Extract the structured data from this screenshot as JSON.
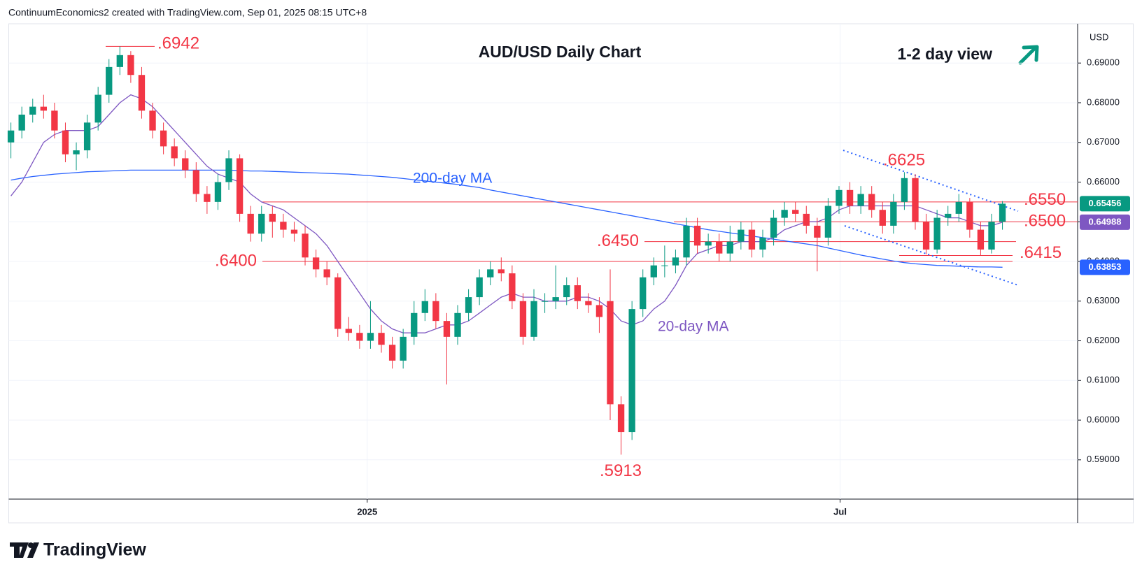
{
  "header": "ContinuumEconomics2 created with TradingView.com, Sep 01, 2025 08:15 UTC+8",
  "footer": "TradingView",
  "chart_data": {
    "type": "candlestick",
    "title": "AUD/USD Daily Chart",
    "subtitle": "1-2 day view",
    "currency": "USD",
    "up_color": "#089981",
    "down_color": "#f23645",
    "open": [
      0.67,
      0.673,
      0.677,
      0.679,
      0.678,
      0.673,
      0.667,
      0.668,
      0.675,
      0.682,
      0.689,
      0.692,
      0.687,
      0.678,
      0.673,
      0.669,
      0.666,
      0.663,
      0.657,
      0.655,
      0.66,
      0.666,
      0.652,
      0.647,
      0.652,
      0.65,
      0.648,
      0.647,
      0.641,
      0.638,
      0.636,
      0.623,
      0.622,
      0.62,
      0.622,
      0.619,
      0.615,
      0.621,
      0.627,
      0.63,
      0.625,
      0.621,
      0.627,
      0.631,
      0.636,
      0.638,
      0.637,
      0.63,
      0.621,
      0.63,
      0.63,
      0.631,
      0.634,
      0.63,
      0.629,
      0.63,
      0.604,
      0.597,
      0.628,
      0.636,
      0.639,
      0.639,
      0.641,
      0.649,
      0.644,
      0.645,
      0.642,
      0.645,
      0.648,
      0.643,
      0.646,
      0.651,
      0.653,
      0.652,
      0.649,
      0.646,
      0.654,
      0.658,
      0.654,
      0.657,
      0.653,
      0.649,
      0.655,
      0.661,
      0.65,
      0.643,
      0.651,
      0.652,
      0.655,
      0.648,
      0.643,
      0.65
    ],
    "high": [
      0.675,
      0.679,
      0.681,
      0.682,
      0.68,
      0.675,
      0.67,
      0.677,
      0.684,
      0.691,
      0.6942,
      0.693,
      0.689,
      0.68,
      0.675,
      0.671,
      0.668,
      0.665,
      0.659,
      0.662,
      0.668,
      0.667,
      0.654,
      0.654,
      0.654,
      0.652,
      0.65,
      0.649,
      0.643,
      0.64,
      0.637,
      0.626,
      0.624,
      0.63,
      0.624,
      0.621,
      0.623,
      0.63,
      0.633,
      0.632,
      0.627,
      0.629,
      0.633,
      0.638,
      0.64,
      0.641,
      0.639,
      0.632,
      0.633,
      0.632,
      0.639,
      0.636,
      0.636,
      0.632,
      0.631,
      0.638,
      0.606,
      0.63,
      0.638,
      0.641,
      0.644,
      0.643,
      0.651,
      0.651,
      0.647,
      0.647,
      0.649,
      0.65,
      0.65,
      0.648,
      0.653,
      0.655,
      0.655,
      0.654,
      0.651,
      0.656,
      0.659,
      0.66,
      0.659,
      0.659,
      0.655,
      0.657,
      0.6625,
      0.662,
      0.652,
      0.653,
      0.654,
      0.657,
      0.656,
      0.65,
      0.652,
      0.6552
    ],
    "low": [
      0.666,
      0.671,
      0.675,
      0.676,
      0.671,
      0.665,
      0.663,
      0.666,
      0.673,
      0.68,
      0.687,
      0.685,
      0.676,
      0.671,
      0.667,
      0.664,
      0.661,
      0.655,
      0.652,
      0.653,
      0.658,
      0.65,
      0.645,
      0.645,
      0.646,
      0.646,
      0.645,
      0.639,
      0.636,
      0.634,
      0.621,
      0.62,
      0.618,
      0.618,
      0.617,
      0.613,
      0.613,
      0.619,
      0.625,
      0.623,
      0.609,
      0.619,
      0.625,
      0.629,
      0.634,
      0.635,
      0.628,
      0.619,
      0.62,
      0.627,
      0.628,
      0.629,
      0.628,
      0.627,
      0.622,
      0.6,
      0.5913,
      0.595,
      0.626,
      0.634,
      0.636,
      0.637,
      0.639,
      0.642,
      0.642,
      0.64,
      0.64,
      0.643,
      0.641,
      0.641,
      0.644,
      0.649,
      0.65,
      0.647,
      0.6375,
      0.644,
      0.652,
      0.652,
      0.652,
      0.651,
      0.647,
      0.647,
      0.653,
      0.648,
      0.6418,
      0.642,
      0.649,
      0.65,
      0.646,
      0.6415,
      0.642,
      0.648
    ],
    "close": [
      0.673,
      0.677,
      0.679,
      0.678,
      0.673,
      0.667,
      0.668,
      0.675,
      0.682,
      0.689,
      0.692,
      0.687,
      0.678,
      0.673,
      0.669,
      0.666,
      0.663,
      0.657,
      0.655,
      0.66,
      0.666,
      0.652,
      0.647,
      0.652,
      0.65,
      0.648,
      0.647,
      0.641,
      0.638,
      0.636,
      0.623,
      0.622,
      0.62,
      0.622,
      0.619,
      0.615,
      0.621,
      0.627,
      0.63,
      0.625,
      0.621,
      0.627,
      0.631,
      0.636,
      0.638,
      0.637,
      0.63,
      0.621,
      0.63,
      0.63,
      0.631,
      0.634,
      0.63,
      0.629,
      0.626,
      0.604,
      0.597,
      0.628,
      0.636,
      0.639,
      0.639,
      0.641,
      0.649,
      0.644,
      0.645,
      0.642,
      0.645,
      0.648,
      0.643,
      0.646,
      0.651,
      0.653,
      0.652,
      0.649,
      0.646,
      0.654,
      0.658,
      0.654,
      0.657,
      0.653,
      0.649,
      0.655,
      0.661,
      0.65,
      0.643,
      0.651,
      0.652,
      0.655,
      0.648,
      0.643,
      0.65,
      0.65456
    ],
    "series": [
      {
        "name": "200-day MA",
        "color": "#2962ff",
        "values": [
          0.6605,
          0.661,
          0.6614,
          0.6617,
          0.662,
          0.6622,
          0.6624,
          0.6626,
          0.6627,
          0.6628,
          0.6629,
          0.663,
          0.663,
          0.663,
          0.663,
          0.663,
          0.663,
          0.663,
          0.663,
          0.663,
          0.663,
          0.6629,
          0.6628,
          0.6628,
          0.6627,
          0.6626,
          0.6625,
          0.6624,
          0.6623,
          0.6622,
          0.6621,
          0.662,
          0.6618,
          0.6616,
          0.6614,
          0.6612,
          0.6609,
          0.6606,
          0.6603,
          0.66,
          0.6597,
          0.6594,
          0.659,
          0.6586,
          0.658,
          0.6575,
          0.657,
          0.6565,
          0.656,
          0.6555,
          0.655,
          0.6545,
          0.654,
          0.6535,
          0.653,
          0.6525,
          0.652,
          0.6515,
          0.651,
          0.6505,
          0.65,
          0.6495,
          0.649,
          0.6485,
          0.648,
          0.6476,
          0.6472,
          0.6468,
          0.6464,
          0.646,
          0.6456,
          0.6452,
          0.6448,
          0.6444,
          0.644,
          0.6434,
          0.6428,
          0.6422,
          0.6416,
          0.6411,
          0.6406,
          0.6401,
          0.6397,
          0.6394,
          0.6392,
          0.639,
          0.6389,
          0.6388,
          0.6387,
          0.6386,
          0.6386,
          0.63853
        ]
      },
      {
        "name": "20-day MA",
        "color": "#7e57c2",
        "values": [
          0.6565,
          0.66,
          0.665,
          0.67,
          0.672,
          0.673,
          0.673,
          0.673,
          0.674,
          0.677,
          0.68,
          0.682,
          0.681,
          0.679,
          0.676,
          0.673,
          0.67,
          0.667,
          0.664,
          0.662,
          0.661,
          0.66,
          0.657,
          0.655,
          0.654,
          0.653,
          0.651,
          0.649,
          0.647,
          0.644,
          0.64,
          0.636,
          0.632,
          0.628,
          0.625,
          0.623,
          0.622,
          0.622,
          0.622,
          0.623,
          0.624,
          0.624,
          0.625,
          0.627,
          0.629,
          0.631,
          0.632,
          0.631,
          0.631,
          0.63,
          0.63,
          0.63,
          0.631,
          0.631,
          0.63,
          0.628,
          0.625,
          0.624,
          0.625,
          0.628,
          0.63,
          0.634,
          0.639,
          0.642,
          0.643,
          0.644,
          0.644,
          0.645,
          0.645,
          0.645,
          0.646,
          0.648,
          0.649,
          0.65,
          0.65,
          0.651,
          0.653,
          0.654,
          0.654,
          0.654,
          0.654,
          0.654,
          0.654,
          0.654,
          0.653,
          0.652,
          0.651,
          0.651,
          0.65,
          0.649,
          0.649,
          0.64988
        ]
      }
    ],
    "xlim": [
      -0.2,
      97.9
    ],
    "xticks": [
      {
        "value": 32.7,
        "label": "2025"
      },
      {
        "value": 76.1,
        "label": "Jul"
      }
    ],
    "ylim": [
      0.5801,
      0.6999
    ],
    "yticks": [
      {
        "value": 0.59,
        "label": "0.59000"
      },
      {
        "value": 0.6,
        "label": "0.60000"
      },
      {
        "value": 0.61,
        "label": "0.61000"
      },
      {
        "value": 0.62,
        "label": "0.62000"
      },
      {
        "value": 0.63,
        "label": "0.63000"
      },
      {
        "value": 0.64,
        "label": "0.64000"
      },
      {
        "value": 0.65,
        "label": "0.65000"
      },
      {
        "value": 0.66,
        "label": "0.66000"
      },
      {
        "value": 0.67,
        "label": "0.67000"
      },
      {
        "value": 0.68,
        "label": "0.68000"
      },
      {
        "value": 0.69,
        "label": "0.69000"
      }
    ],
    "grid": true,
    "levels": [
      {
        "value": 0.6942,
        "label": ".6942"
      },
      {
        "value": 0.6625,
        "label": ".6625"
      },
      {
        "value": 0.655,
        "label": ".6550"
      },
      {
        "value": 0.65,
        "label": ".6500"
      },
      {
        "value": 0.645,
        "label": ".6450"
      },
      {
        "value": 0.64,
        "label": ".6400"
      },
      {
        "value": 0.6415,
        "label": ".6415"
      },
      {
        "value": 0.5913,
        "label": ".5913"
      }
    ],
    "level_color": "#f23645",
    "price_labels": [
      {
        "value": 0.65456,
        "label": "0.65456",
        "color": "#089981"
      },
      {
        "value": 0.64988,
        "label": "0.64988",
        "color": "#7e57c2"
      },
      {
        "value": 0.63853,
        "label": "0.63853",
        "color": "#2962ff"
      }
    ]
  }
}
